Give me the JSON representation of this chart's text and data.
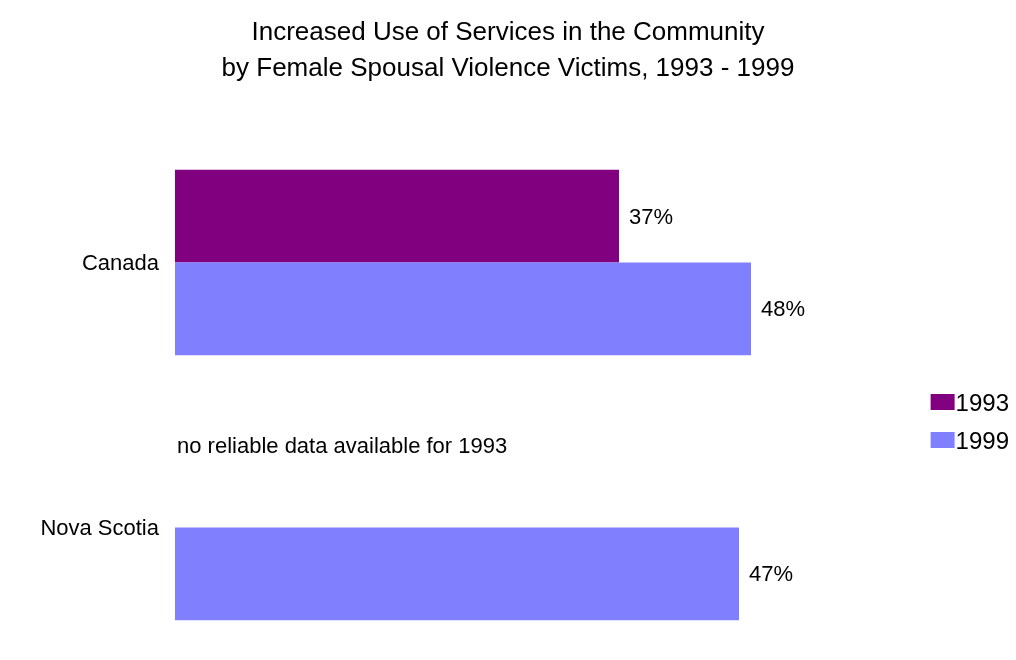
{
  "chart_data": {
    "type": "bar",
    "orientation": "horizontal",
    "title": "Increased Use of Services in the Community\nby Female Spousal Violence Victims, 1993 - 1999",
    "categories": [
      "Canada",
      "Nova Scotia"
    ],
    "series": [
      {
        "name": "1993",
        "color": "#800080",
        "values": [
          37,
          null
        ],
        "value_labels": [
          "37%",
          null
        ]
      },
      {
        "name": "1999",
        "color": "#8080ff",
        "values": [
          48,
          47
        ],
        "value_labels": [
          "48%",
          "47%"
        ]
      }
    ],
    "legend": "right",
    "grid": false,
    "annotations": [
      "no reliable data available for 1993"
    ]
  }
}
